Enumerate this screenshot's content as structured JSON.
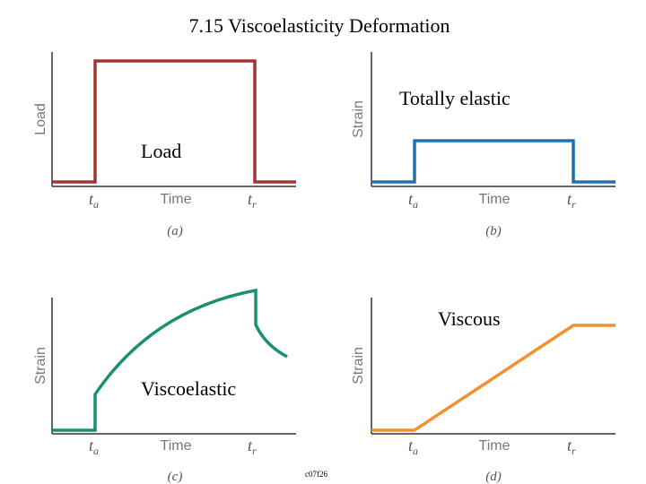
{
  "title": "7.15  Viscoelasticity Deformation",
  "code_label": "c07f26",
  "overlays": {
    "load": "Load",
    "elastic": "Totally elastic",
    "viscous": "Viscous",
    "viscoelastic": "Viscoelastic"
  },
  "panels": [
    {
      "id": "a",
      "ylabel": "Load",
      "xlabel": "Time",
      "t_a": "t",
      "t_a_sub": "a",
      "t_r": "t",
      "t_r_sub": "r",
      "caption": "(a)",
      "color": "#a83232"
    },
    {
      "id": "b",
      "ylabel": "Strain",
      "xlabel": "Time",
      "t_a": "t",
      "t_a_sub": "a",
      "t_r": "t",
      "t_r_sub": "r",
      "caption": "(b)",
      "color": "#1d73b0"
    },
    {
      "id": "c",
      "ylabel": "Strain",
      "xlabel": "Time",
      "t_a": "t",
      "t_a_sub": "a",
      "t_r": "t",
      "t_r_sub": "r",
      "caption": "(c)",
      "color": "#1a9070"
    },
    {
      "id": "d",
      "ylabel": "Strain",
      "xlabel": "Time",
      "t_a": "t",
      "t_a_sub": "a",
      "t_r": "t",
      "t_r_sub": "r",
      "caption": "(d)",
      "color": "#f0922e"
    }
  ]
}
